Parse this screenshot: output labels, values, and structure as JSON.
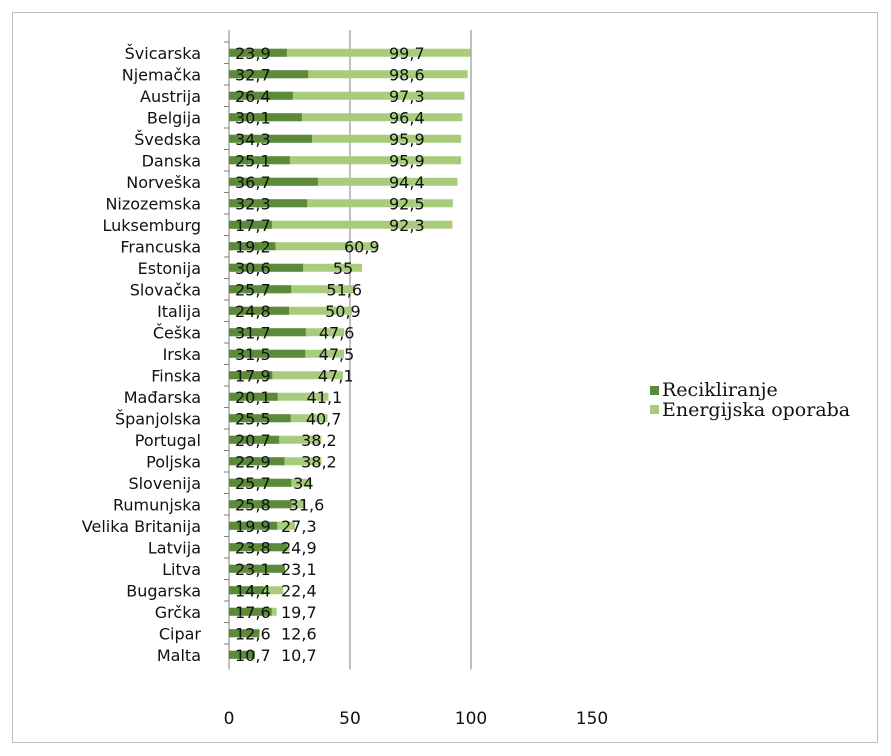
{
  "chart_data": {
    "type": "bar",
    "orientation": "horizontal",
    "categories": [
      "Švicarska",
      "Njemačka",
      "Austrija",
      "Belgija",
      "Švedska",
      "Danska",
      "Norveška",
      "Nizozemska",
      "Luksemburg",
      "Francuska",
      "Estonija",
      "Slovačka",
      "Italija",
      "Češka",
      "Irska",
      "Finska",
      "Mađarska",
      "Španjolska",
      "Portugal",
      "Poljska",
      "Slovenija",
      "Rumunjska",
      "Velika Britanija",
      "Latvija",
      "Litva",
      "Bugarska",
      "Grčka",
      "Cipar",
      "Malta"
    ],
    "series": [
      {
        "name": "Recikliranje",
        "color": "#5a8a3a",
        "values": [
          23.9,
          32.7,
          26.4,
          30.1,
          34.3,
          25.1,
          36.7,
          32.3,
          17.7,
          19.2,
          30.6,
          25.7,
          24.8,
          31.7,
          31.5,
          17.9,
          20.1,
          25.5,
          20.7,
          22.9,
          25.7,
          25.8,
          19.9,
          23.8,
          23.1,
          14.4,
          17.6,
          12.6,
          10.7
        ],
        "labels": [
          "23,9",
          "32,7",
          "26,4",
          "30,1",
          "34,3",
          "25,1",
          "36,7",
          "32,3",
          "17,7",
          "19,2",
          "30,6",
          "25,7",
          "24,8",
          "31,7",
          "31,5",
          "17,9",
          "20,1",
          "25,5",
          "20,7",
          "22,9",
          "25,7",
          "25,8",
          "19,9",
          "23,8",
          "23,1",
          "14,4",
          "17,6",
          "12,6",
          "10,7"
        ]
      },
      {
        "name": "Energijska oporaba",
        "color": "#a9cb7c",
        "values": [
          99.7,
          98.6,
          97.3,
          96.4,
          95.9,
          95.9,
          94.4,
          92.5,
          92.3,
          60.9,
          55,
          51.6,
          50.9,
          47.6,
          47.5,
          47.1,
          41.1,
          40.7,
          38.2,
          38.2,
          34,
          31.6,
          27.3,
          24.9,
          23.1,
          22.4,
          19.7,
          12.6,
          10.7
        ],
        "labels": [
          "99,7",
          "98,6",
          "97,3",
          "96,4",
          "95,9",
          "95,9",
          "94,4",
          "92,5",
          "92,3",
          "60,9",
          "55",
          "51,6",
          "50,9",
          "47,6",
          "47,5",
          "47,1",
          "41,1",
          "40,7",
          "38,2",
          "38,2",
          "34",
          "31,6",
          "27,3",
          "24,9",
          "23,1",
          "22,4",
          "19,7",
          "12,6",
          "10,7"
        ]
      }
    ],
    "xlim": [
      0,
      150
    ],
    "xticks": [
      "0",
      "50",
      "100",
      "150"
    ],
    "grid": true,
    "legend": "right"
  }
}
